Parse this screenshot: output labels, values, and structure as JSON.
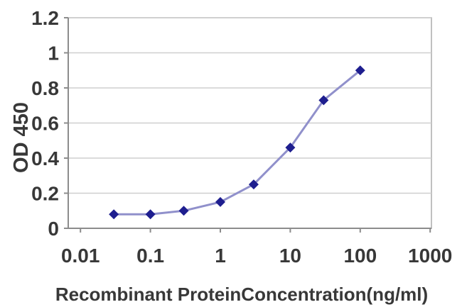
{
  "chart_data": {
    "type": "line",
    "title": "",
    "xlabel": "Recombinant ProteinConcentration(ng/ml)",
    "ylabel": "OD 450",
    "x_scale": "log",
    "ylim": [
      0,
      1.2
    ],
    "xlim": [
      0.01,
      1000
    ],
    "x_tick_values": [
      0.01,
      0.1,
      1,
      10,
      100,
      1000
    ],
    "x_tick_labels": [
      "0.01",
      "0.1",
      "1",
      "10",
      "100",
      "1000"
    ],
    "y_tick_values": [
      0,
      0.2,
      0.4,
      0.6,
      0.8,
      1,
      1.2
    ],
    "y_tick_labels": [
      "0",
      "0.2",
      "0.4",
      "0.6",
      "0.8",
      "1",
      "1.2"
    ],
    "grid": "horizontal",
    "legend_position": "none",
    "marker": "diamond",
    "series": [
      {
        "x": [
          0.03,
          0.1,
          0.3,
          1,
          3,
          10,
          30,
          100
        ],
        "y": [
          0.08,
          0.08,
          0.1,
          0.15,
          0.25,
          0.46,
          0.73,
          0.9
        ]
      }
    ],
    "colors": {
      "marker": "#1e1e8f",
      "line": "#9090cb",
      "grid": "#cfcfcf",
      "axis": "#8c8c8c",
      "border": "#ababab",
      "text": "#383838",
      "background": "#ffffff"
    }
  }
}
